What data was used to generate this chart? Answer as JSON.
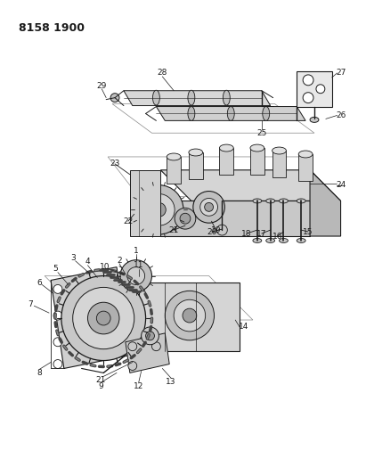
{
  "title": "8158 1900",
  "bg_color": "#ffffff",
  "line_color": "#1a1a1a",
  "text_color": "#1a1a1a",
  "fig_width": 4.11,
  "fig_height": 5.33,
  "dpi": 100,
  "label_fs": 6.5,
  "title_fs": 9,
  "lw_thin": 0.5,
  "lw_med": 0.8,
  "lw_thick": 1.2,
  "gray_light": "#e8e8e8",
  "gray_mid": "#c8c8c8",
  "gray_dark": "#a0a0a0"
}
